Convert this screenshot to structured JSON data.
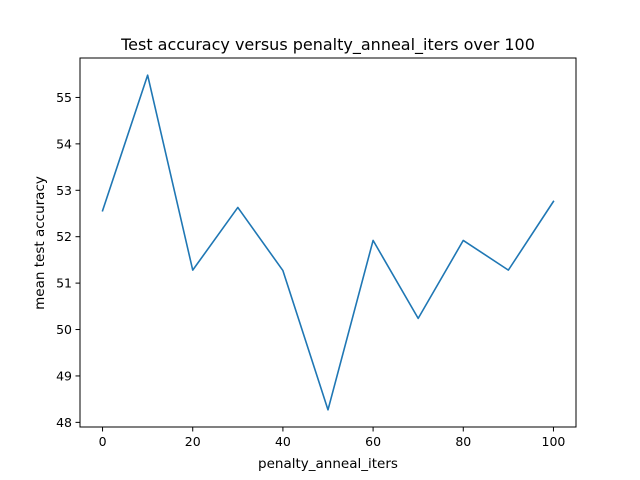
{
  "chart_data": {
    "type": "line",
    "title": "Test accuracy versus penalty_anneal_iters over 100",
    "xlabel": "penalty_anneal_iters",
    "ylabel": "mean test accuracy",
    "xlim": [
      -5,
      105
    ],
    "ylim": [
      47.9,
      55.85
    ],
    "grid": false,
    "x_ticks": [
      0,
      20,
      40,
      60,
      80,
      100
    ],
    "y_ticks": [
      48,
      49,
      50,
      51,
      52,
      53,
      54,
      55
    ],
    "series": [
      {
        "color": "#1f77b4",
        "x": [
          0,
          10,
          20,
          30,
          40,
          50,
          60,
          70,
          80,
          90,
          100
        ],
        "y": [
          52.56,
          55.48,
          51.28,
          52.63,
          51.27,
          48.27,
          51.92,
          50.24,
          51.92,
          51.28,
          52.76
        ]
      }
    ]
  }
}
